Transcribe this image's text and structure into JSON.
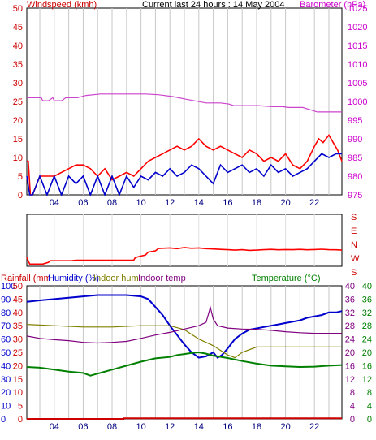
{
  "chart_data": [
    {
      "type": "line",
      "title": "Current last 24 hours : 14 May 2004",
      "left_axis_label": "Windspeed (kmh)",
      "right_axis_label": "Barometer (hPa)",
      "left_ticks": [
        "0",
        "5",
        "10",
        "15",
        "20",
        "25",
        "30",
        "35",
        "40",
        "45",
        "50"
      ],
      "right_ticks": [
        "975",
        "980",
        "985",
        "990",
        "995",
        "1000",
        "1005",
        "1010",
        "1015",
        "1020",
        "1025"
      ],
      "ylim_left": [
        0,
        50
      ],
      "ylim_right": [
        975,
        1025
      ],
      "x_ticks": [
        "04",
        "06",
        "08",
        "10",
        "12",
        "14",
        "16",
        "18",
        "20",
        "22"
      ],
      "x_tick_hours": [
        4,
        6,
        8,
        10,
        12,
        14,
        16,
        18,
        20,
        22
      ],
      "xlim_hours": [
        2.1,
        23.9
      ],
      "grid": "vertical",
      "colors": {
        "wind_label": "#cc0000",
        "baro_label": "#cc00cc",
        "gust": "#ff0000",
        "avg": "#0000cc",
        "barometer": "#cc44cc",
        "grid": "#c8c8c8"
      },
      "series": [
        {
          "role": "barometer",
          "color": "#cc44cc",
          "x": [
            2.1,
            3.1,
            3.2,
            3.6,
            3.9,
            4.0,
            4.5,
            4.8,
            5.6,
            6.2,
            7.2,
            8.2,
            9.3,
            10.3,
            11.2,
            12.2,
            13.1,
            14.5,
            15.5,
            16.1,
            16.4,
            17.1,
            18.1,
            19.1,
            19.8,
            20.2,
            21.2,
            22.2,
            23.9
          ],
          "y": [
            1001,
            1001,
            1000.2,
            1000.2,
            1001,
            1000.2,
            1000.2,
            1001,
            1001,
            1001.6,
            1002,
            1002,
            1002,
            1002,
            1001.8,
            1001.3,
            1000.6,
            999.6,
            999.6,
            999.3,
            998.9,
            998.9,
            998.9,
            998.6,
            998.6,
            998.4,
            998.4,
            997.2,
            997.2
          ]
        },
        {
          "role": "wind_gust",
          "color": "#ff0000",
          "x": [
            2.1,
            2.2,
            2.35,
            2.5,
            3.0,
            4.0,
            5.0,
            5.5,
            6.0,
            6.5,
            7.0,
            7.5,
            8.0,
            8.5,
            9.0,
            9.5,
            10.0,
            10.5,
            11.0,
            11.5,
            12.0,
            12.5,
            13.0,
            13.5,
            14.0,
            14.5,
            15.0,
            15.5,
            16.0,
            16.5,
            17.0,
            17.5,
            18.0,
            18.5,
            19.0,
            19.5,
            20.0,
            20.5,
            21.0,
            21.5,
            22.0,
            22.3,
            22.6,
            23.0,
            23.3,
            23.6,
            23.9
          ],
          "y": [
            9,
            9,
            0,
            0,
            5,
            5,
            7,
            8,
            8,
            7,
            5,
            7,
            4,
            5,
            6,
            5,
            7,
            9,
            10,
            11,
            12,
            13,
            12,
            13,
            15,
            13,
            12,
            13,
            12,
            11,
            10,
            12,
            11,
            9,
            10,
            9,
            11,
            8,
            7,
            9,
            13,
            15,
            14,
            16,
            14,
            12,
            9
          ]
        },
        {
          "role": "wind_avg",
          "color": "#0000cc",
          "x": [
            2.1,
            2.3,
            2.5,
            3.0,
            3.5,
            4.0,
            4.5,
            5.0,
            5.5,
            6.0,
            6.5,
            7.0,
            7.5,
            8.0,
            8.5,
            9.0,
            9.5,
            10.0,
            10.5,
            11.0,
            11.5,
            12.0,
            12.5,
            13.0,
            13.5,
            14.0,
            14.5,
            15.0,
            15.5,
            16.0,
            16.5,
            17.0,
            17.5,
            18.0,
            18.5,
            19.0,
            19.5,
            20.0,
            20.5,
            21.0,
            21.5,
            22.0,
            22.5,
            23.0,
            23.5,
            23.9
          ],
          "y": [
            5,
            0,
            0,
            5,
            0,
            5,
            0,
            5,
            3,
            5,
            0,
            5,
            0,
            5,
            0,
            5,
            2,
            5,
            4,
            6,
            5,
            7,
            5,
            6,
            8,
            7,
            5,
            3,
            8,
            6,
            7,
            8,
            6,
            7,
            5,
            8,
            6,
            7,
            5,
            6,
            7,
            9,
            11,
            10,
            11,
            11
          ]
        }
      ]
    },
    {
      "type": "line",
      "role": "wind_direction",
      "right_ticks": [
        "S",
        "E",
        "N",
        "W",
        "S"
      ],
      "ylim": [
        0,
        360
      ],
      "xlim_hours": [
        2.1,
        23.9
      ],
      "color": "#ff0000",
      "x": [
        2.1,
        2.3,
        3.2,
        3.6,
        3.7,
        5.2,
        5.5,
        5.6,
        6.5,
        7.5,
        8.5,
        9.5,
        9.6,
        10.0,
        10.3,
        10.5,
        11.0,
        11.2,
        11.5,
        12.0,
        12.5,
        13.0,
        13.5,
        14.0,
        14.5,
        15.0,
        15.5,
        16.0,
        16.5,
        17.0,
        17.5,
        18.0,
        18.5,
        19.0,
        19.5,
        20.0,
        20.5,
        21.0,
        21.5,
        22.0,
        22.5,
        23.0,
        23.5,
        23.9
      ],
      "y": [
        300,
        345,
        345,
        333,
        322,
        322,
        318,
        318,
        318,
        318,
        318,
        318,
        300,
        289,
        283,
        262,
        253,
        237,
        235,
        233,
        238,
        230,
        235,
        233,
        238,
        240,
        243,
        245,
        248,
        245,
        250,
        248,
        245,
        243,
        246,
        244,
        245,
        243,
        246,
        244,
        242,
        245,
        246,
        248
      ]
    },
    {
      "type": "line",
      "left_axis_label_1": "Rainfall (mm",
      "left_axis_label_2": "Humidity (%)",
      "left_axis_label_3": "Indoor hum",
      "left_axis_label_4": "Indoor temp",
      "right_axis_label": "Temperature (°C)",
      "humidity_ticks": [
        "0",
        "10",
        "20",
        "30",
        "40",
        "50",
        "60",
        "70",
        "80",
        "90",
        "100"
      ],
      "rainfall_ticks": [
        "0",
        "5",
        "10",
        "15",
        "20",
        "25",
        "30",
        "35",
        "40",
        "45",
        "50"
      ],
      "temp_ticks": [
        "0",
        "4",
        "8",
        "12",
        "16",
        "20",
        "24",
        "28",
        "32",
        "36",
        "40"
      ],
      "ylim_humidity": [
        0,
        100
      ],
      "ylim_temp": [
        0,
        40
      ],
      "x_ticks": [
        "04",
        "06",
        "08",
        "10",
        "12",
        "14",
        "16",
        "18",
        "20",
        "22"
      ],
      "x_tick_hours": [
        4,
        6,
        8,
        10,
        12,
        14,
        16,
        18,
        20,
        22
      ],
      "xlim_hours": [
        2.1,
        23.9
      ],
      "colors": {
        "rain_label": "#cc0000",
        "humidity_label": "#0000cc",
        "indoor_hum_label": "#808000",
        "indoor_temp_label": "#800080",
        "temp_label": "#008000",
        "grid": "#c8c8c8"
      },
      "series": [
        {
          "role": "humidity",
          "color": "#0000cc",
          "x": [
            2.1,
            3,
            4,
            5,
            6,
            7,
            8,
            9,
            10,
            10.5,
            11,
            11.5,
            12,
            12.5,
            13,
            13.5,
            14,
            14.5,
            15,
            15.3,
            15.6,
            16,
            16.5,
            17,
            17.5,
            18,
            18.5,
            19,
            19.5,
            20,
            20.5,
            21,
            21.5,
            22,
            22.5,
            23,
            23.5,
            23.9
          ],
          "y": [
            88,
            89,
            90,
            91,
            92,
            93,
            93,
            93,
            92,
            90,
            84,
            78,
            70,
            63,
            56,
            50,
            46,
            47,
            50,
            46,
            48,
            53,
            60,
            64,
            67,
            68,
            69,
            70,
            71,
            72,
            73,
            74,
            76,
            77,
            78,
            80,
            80,
            81
          ]
        },
        {
          "role": "indoor_hum",
          "color": "#808000",
          "x": [
            2.1,
            4,
            6,
            8,
            10,
            12,
            13,
            14,
            15,
            16,
            16.5,
            17,
            18,
            20,
            22,
            23.9
          ],
          "y": [
            71,
            70,
            69,
            69,
            70,
            70,
            67,
            60,
            55,
            48,
            46,
            50,
            54,
            54,
            54,
            54
          ]
        },
        {
          "role": "indoor_temp",
          "color": "#800080",
          "x": [
            2.1,
            3,
            4,
            5,
            6,
            7,
            8,
            9,
            10,
            11,
            12,
            13,
            14,
            14.5,
            14.8,
            15.0,
            15.3,
            16,
            17,
            18,
            19,
            20,
            21,
            22,
            23.9
          ],
          "y": [
            24.9,
            24.2,
            23.8,
            23.5,
            23.0,
            22.8,
            23.0,
            23.3,
            24.2,
            25.2,
            26.0,
            27.0,
            28.0,
            29.0,
            33.5,
            30.0,
            28.0,
            27.3,
            27.0,
            26.9,
            26.6,
            26.2,
            25.9,
            25.7,
            25.7
          ]
        },
        {
          "role": "temperature",
          "color": "#008000",
          "x": [
            2.1,
            3,
            4,
            5,
            6,
            6.5,
            7,
            8,
            9,
            10,
            11,
            12,
            12.5,
            13,
            13.5,
            14,
            14.5,
            15,
            16,
            17,
            18,
            19,
            20,
            21,
            22,
            23,
            23.9
          ],
          "y": [
            15.6,
            15.4,
            14.8,
            14.2,
            13.8,
            13.0,
            13.6,
            14.8,
            16.0,
            17.2,
            18.2,
            18.6,
            19.2,
            19.5,
            19.8,
            20.0,
            19.6,
            19.0,
            18.3,
            17.4,
            16.6,
            16.0,
            15.8,
            15.6,
            15.7,
            16.0,
            16.2
          ]
        },
        {
          "role": "rainfall",
          "color": "#cc0000",
          "x": [
            2.1,
            8.8,
            8.8,
            23.9
          ],
          "y": [
            0,
            0,
            0.4,
            0.4
          ]
        }
      ]
    }
  ]
}
